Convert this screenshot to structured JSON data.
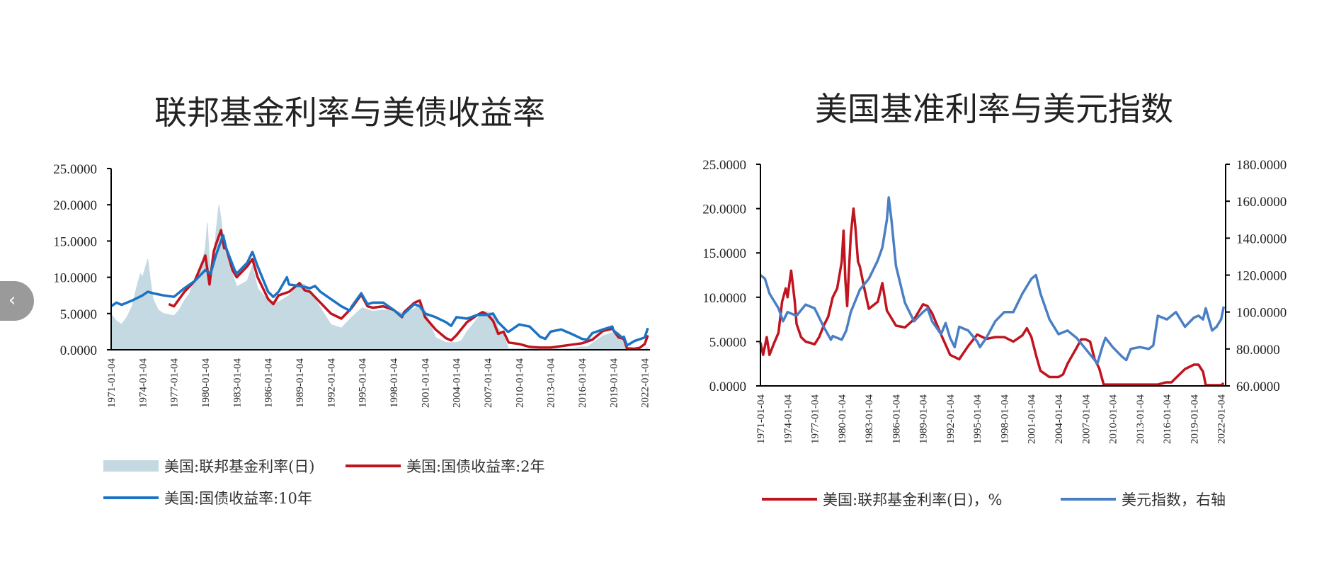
{
  "nav": {
    "prev_glyph": "‹"
  },
  "chart_data": [
    {
      "type": "line",
      "title": "联邦基金利率与美债收益率",
      "ylim": [
        0,
        25
      ],
      "y_ticks": [
        "25.0000",
        "20.0000",
        "15.0000",
        "10.0000",
        "5.0000",
        "0.0000"
      ],
      "x_ticks": [
        "1971-01-04",
        "1974-01-04",
        "1977-01-04",
        "1980-01-04",
        "1983-01-04",
        "1986-01-04",
        "1989-01-04",
        "1992-01-04",
        "1995-01-04",
        "1998-01-04",
        "2001-01-04",
        "2004-01-04",
        "2007-01-04",
        "2010-01-04",
        "2013-01-04",
        "2016-01-04",
        "2019-01-04",
        "2022-01-04"
      ],
      "x_range": [
        1971.0,
        2022.5
      ],
      "legend_position": "bottom",
      "series": [
        {
          "name": "美国:联邦基金利率(日)",
          "kind": "area",
          "color": "#c4d9e2",
          "x": [
            1971.0,
            1971.5,
            1972.0,
            1972.5,
            1973.0,
            1973.5,
            1973.8,
            1974.0,
            1974.5,
            1974.8,
            1975.0,
            1975.5,
            1976.0,
            1977.0,
            1977.5,
            1978.0,
            1978.5,
            1979.0,
            1979.5,
            1980.0,
            1980.2,
            1980.4,
            1980.6,
            1980.8,
            1981.0,
            1981.3,
            1981.5,
            1981.8,
            1982.0,
            1982.5,
            1983.0,
            1984.0,
            1984.5,
            1985.0,
            1986.0,
            1987.0,
            1988.0,
            1989.0,
            1989.5,
            1990.0,
            1991.0,
            1992.0,
            1993.0,
            1994.0,
            1995.0,
            1996.0,
            1997.0,
            1998.0,
            1999.0,
            2000.0,
            2000.5,
            2001.0,
            2001.5,
            2002.0,
            2003.0,
            2004.0,
            2004.5,
            2005.0,
            2006.0,
            2006.5,
            2007.0,
            2007.5,
            2008.0,
            2008.5,
            2009.0,
            2012.0,
            2015.0,
            2015.9,
            2016.5,
            2017.0,
            2018.0,
            2019.0,
            2019.5,
            2020.0,
            2020.3,
            2021.0,
            2022.0,
            2022.3
          ],
          "y": [
            4.9,
            4.0,
            3.5,
            4.5,
            6.0,
            9.0,
            10.5,
            10.0,
            12.5,
            9.0,
            7.0,
            5.5,
            5.0,
            4.7,
            5.5,
            6.8,
            7.8,
            10.0,
            11.0,
            14.0,
            17.5,
            12.0,
            9.0,
            12.0,
            16.0,
            20.0,
            18.0,
            14.0,
            13.5,
            11.0,
            8.7,
            9.5,
            11.6,
            8.5,
            6.8,
            6.6,
            7.5,
            9.2,
            9.0,
            8.2,
            5.8,
            3.5,
            3.0,
            4.5,
            5.8,
            5.3,
            5.5,
            5.5,
            5.0,
            5.7,
            6.5,
            5.5,
            3.5,
            1.7,
            1.0,
            1.0,
            1.3,
            2.5,
            4.3,
            5.25,
            5.25,
            5.0,
            3.0,
            2.0,
            0.15,
            0.15,
            0.15,
            0.4,
            0.4,
            0.9,
            1.9,
            2.4,
            2.4,
            1.6,
            0.1,
            0.08,
            0.08,
            0.3
          ]
        },
        {
          "name": "美国:国债收益率:2年",
          "kind": "line",
          "color": "#c0141f",
          "x": [
            1976.5,
            1977.0,
            1978.0,
            1979.0,
            1980.0,
            1980.4,
            1980.8,
            1981.0,
            1981.5,
            1981.8,
            1982.0,
            1982.6,
            1983.0,
            1984.0,
            1984.5,
            1985.0,
            1986.0,
            1986.5,
            1987.0,
            1988.0,
            1989.0,
            1989.5,
            1990.0,
            1991.0,
            1992.0,
            1993.0,
            1994.0,
            1994.9,
            1995.5,
            1996.0,
            1997.0,
            1998.0,
            1998.8,
            1999.0,
            2000.0,
            2000.5,
            2001.0,
            2002.0,
            2003.0,
            2003.5,
            2004.0,
            2005.0,
            2006.0,
            2006.5,
            2007.0,
            2007.5,
            2008.0,
            2008.5,
            2009.0,
            2010.0,
            2011.0,
            2012.0,
            2013.0,
            2014.0,
            2015.0,
            2016.0,
            2017.0,
            2018.0,
            2018.9,
            2019.5,
            2020.0,
            2020.3,
            2021.0,
            2021.5,
            2022.0,
            2022.3
          ],
          "y": [
            6.3,
            6.0,
            8.0,
            9.5,
            13.0,
            9.0,
            13.5,
            14.5,
            16.5,
            14.0,
            14.0,
            11.0,
            10.0,
            11.5,
            12.5,
            10.0,
            7.0,
            6.3,
            7.5,
            8.0,
            9.2,
            8.2,
            8.0,
            6.5,
            5.0,
            4.3,
            5.8,
            7.6,
            6.0,
            5.8,
            6.0,
            5.5,
            4.5,
            5.2,
            6.5,
            6.8,
            4.5,
            2.8,
            1.6,
            1.3,
            2.0,
            3.8,
            4.8,
            5.2,
            4.8,
            4.0,
            2.2,
            2.5,
            1.0,
            0.8,
            0.4,
            0.3,
            0.3,
            0.5,
            0.7,
            0.9,
            1.4,
            2.6,
            2.9,
            1.7,
            1.5,
            0.2,
            0.15,
            0.25,
            0.8,
            2.0
          ]
        },
        {
          "name": "美国:国债收益率:10年",
          "kind": "line",
          "color": "#1a73c4",
          "x": [
            1971.0,
            1971.5,
            1972.0,
            1973.0,
            1974.0,
            1974.5,
            1975.0,
            1976.0,
            1977.0,
            1978.0,
            1979.0,
            1980.0,
            1980.5,
            1981.0,
            1981.7,
            1982.0,
            1982.8,
            1983.0,
            1984.0,
            1984.5,
            1985.0,
            1986.0,
            1986.5,
            1987.0,
            1987.8,
            1988.0,
            1989.0,
            1990.0,
            1990.5,
            1991.0,
            1992.0,
            1993.0,
            1993.8,
            1994.0,
            1994.9,
            1995.5,
            1996.0,
            1997.0,
            1998.0,
            1998.8,
            1999.0,
            2000.0,
            2000.5,
            2001.0,
            2002.0,
            2003.0,
            2003.5,
            2004.0,
            2005.0,
            2006.0,
            2007.0,
            2007.5,
            2008.0,
            2008.9,
            2009.0,
            2010.0,
            2011.0,
            2012.0,
            2012.5,
            2013.0,
            2014.0,
            2015.0,
            2016.0,
            2016.5,
            2017.0,
            2018.0,
            2018.9,
            2019.0,
            2019.8,
            2020.0,
            2020.3,
            2021.0,
            2022.0,
            2022.3
          ],
          "y": [
            6.0,
            6.5,
            6.2,
            6.8,
            7.5,
            8.0,
            7.8,
            7.5,
            7.3,
            8.5,
            9.5,
            11.0,
            10.5,
            13.0,
            15.8,
            14.0,
            11.0,
            10.5,
            12.0,
            13.5,
            11.5,
            8.0,
            7.3,
            8.0,
            10.0,
            9.0,
            8.8,
            8.5,
            8.8,
            8.0,
            7.0,
            6.0,
            5.4,
            6.0,
            7.8,
            6.3,
            6.5,
            6.5,
            5.5,
            4.6,
            5.0,
            6.3,
            6.0,
            5.0,
            4.5,
            3.8,
            3.3,
            4.5,
            4.3,
            4.8,
            4.8,
            5.0,
            3.8,
            2.5,
            2.5,
            3.5,
            3.2,
            1.8,
            1.5,
            2.5,
            2.8,
            2.2,
            1.5,
            1.4,
            2.3,
            2.8,
            3.2,
            2.7,
            1.7,
            1.8,
            0.6,
            1.2,
            1.7,
            3.0
          ]
        }
      ]
    },
    {
      "type": "line",
      "title": "美国基准利率与美元指数",
      "ylim": [
        0,
        25
      ],
      "ylim_right": [
        60,
        180
      ],
      "y_ticks": [
        "25.0000",
        "20.0000",
        "15.0000",
        "10.0000",
        "5.0000",
        "0.0000"
      ],
      "y_ticks_right": [
        "180.0000",
        "160.0000",
        "140.0000",
        "120.0000",
        "100.0000",
        "80.0000",
        "60.0000"
      ],
      "x_ticks": [
        "1971-01-04",
        "1974-01-04",
        "1977-01-04",
        "1980-01-04",
        "1983-01-04",
        "1986-01-04",
        "1989-01-04",
        "1992-01-04",
        "1995-01-04",
        "1998-01-04",
        "2001-01-04",
        "2004-01-04",
        "2007-01-04",
        "2010-01-04",
        "2013-01-04",
        "2016-01-04",
        "2019-01-04",
        "2022-01-04"
      ],
      "x_range": [
        1971.0,
        2022.5
      ],
      "legend_position": "bottom",
      "series": [
        {
          "name": "美国:联邦基金利率(日)，%",
          "kind": "line",
          "color": "#c0141f",
          "axis": "left",
          "x": [
            1971.0,
            1971.3,
            1971.7,
            1972.0,
            1972.5,
            1973.0,
            1973.4,
            1973.8,
            1974.0,
            1974.4,
            1974.8,
            1975.0,
            1975.5,
            1976.0,
            1977.0,
            1977.5,
            1978.0,
            1978.5,
            1979.0,
            1979.5,
            1980.0,
            1980.2,
            1980.4,
            1980.6,
            1980.8,
            1981.0,
            1981.3,
            1981.5,
            1981.8,
            1982.0,
            1982.5,
            1983.0,
            1984.0,
            1984.5,
            1985.0,
            1986.0,
            1987.0,
            1988.0,
            1989.0,
            1989.5,
            1990.0,
            1991.0,
            1992.0,
            1993.0,
            1994.0,
            1995.0,
            1996.0,
            1997.0,
            1998.0,
            1999.0,
            2000.0,
            2000.5,
            2001.0,
            2001.5,
            2002.0,
            2003.0,
            2004.0,
            2004.5,
            2005.0,
            2006.0,
            2006.5,
            2007.0,
            2007.5,
            2008.0,
            2008.5,
            2009.0,
            2012.0,
            2015.0,
            2015.9,
            2016.5,
            2017.0,
            2018.0,
            2019.0,
            2019.5,
            2020.0,
            2020.3,
            2021.0,
            2022.0,
            2022.3
          ],
          "y": [
            4.9,
            3.5,
            5.5,
            3.5,
            4.8,
            6.0,
            9.5,
            11.0,
            10.0,
            13.0,
            9.5,
            7.0,
            5.5,
            5.0,
            4.7,
            5.5,
            6.8,
            7.8,
            10.0,
            11.0,
            14.0,
            17.5,
            12.0,
            9.0,
            13.0,
            17.0,
            20.0,
            18.0,
            14.0,
            13.5,
            11.0,
            8.7,
            9.5,
            11.6,
            8.5,
            6.8,
            6.6,
            7.5,
            9.2,
            9.0,
            8.2,
            5.8,
            3.5,
            3.0,
            4.5,
            5.8,
            5.3,
            5.5,
            5.5,
            5.0,
            5.7,
            6.5,
            5.5,
            3.5,
            1.7,
            1.0,
            1.0,
            1.3,
            2.5,
            4.3,
            5.25,
            5.25,
            5.0,
            3.0,
            2.0,
            0.15,
            0.15,
            0.15,
            0.4,
            0.4,
            0.9,
            1.9,
            2.4,
            2.4,
            1.6,
            0.1,
            0.08,
            0.08,
            0.3
          ]
        },
        {
          "name": "美元指数，右轴",
          "kind": "line",
          "color": "#4a7fc4",
          "axis": "right",
          "x": [
            1971.0,
            1971.5,
            1972.0,
            1973.0,
            1973.5,
            1974.0,
            1975.0,
            1976.0,
            1977.0,
            1978.0,
            1978.8,
            1979.0,
            1980.0,
            1980.5,
            1981.0,
            1981.5,
            1982.0,
            1983.0,
            1984.0,
            1984.5,
            1985.0,
            1985.2,
            1985.5,
            1986.0,
            1987.0,
            1988.0,
            1989.0,
            1989.5,
            1990.0,
            1991.0,
            1991.5,
            1992.0,
            1992.5,
            1993.0,
            1994.0,
            1995.0,
            1995.3,
            1996.0,
            1997.0,
            1998.0,
            1999.0,
            2000.0,
            2001.0,
            2001.5,
            2002.0,
            2003.0,
            2004.0,
            2005.0,
            2006.0,
            2007.0,
            2008.0,
            2008.3,
            2008.9,
            2009.2,
            2010.0,
            2011.0,
            2011.5,
            2012.0,
            2013.0,
            2014.0,
            2014.5,
            2015.0,
            2016.0,
            2017.0,
            2018.0,
            2019.0,
            2019.5,
            2020.0,
            2020.3,
            2021.0,
            2021.5,
            2022.0,
            2022.3
          ],
          "y": [
            120,
            118,
            110,
            102,
            95,
            100,
            98,
            104,
            102,
            92,
            85,
            87,
            85,
            90,
            100,
            106,
            112,
            118,
            128,
            135,
            150,
            162,
            150,
            125,
            105,
            95,
            100,
            102,
            95,
            88,
            94,
            86,
            81,
            92,
            90,
            84,
            81,
            86,
            95,
            100,
            100,
            110,
            118,
            120,
            110,
            96,
            88,
            90,
            86,
            80,
            74,
            72,
            82,
            86,
            81,
            76,
            74,
            80,
            81,
            80,
            82,
            98,
            96,
            100,
            92,
            97,
            98,
            96,
            102,
            90,
            92,
            96,
            103
          ]
        }
      ]
    }
  ]
}
